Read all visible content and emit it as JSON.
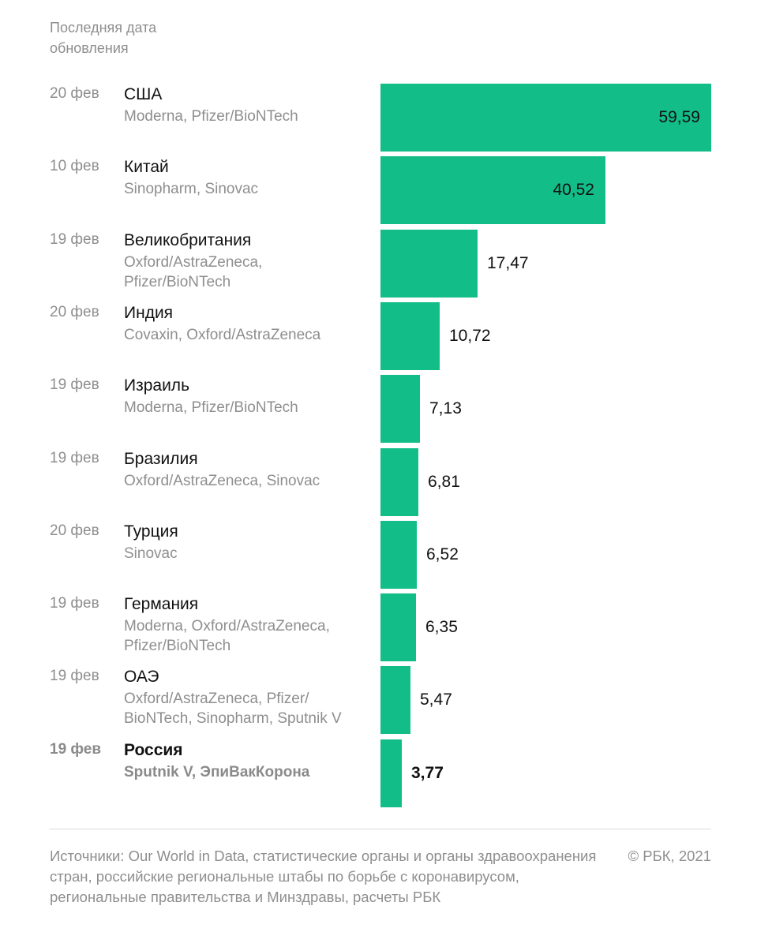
{
  "header": {
    "date_column_label": "Последняя дата обновления"
  },
  "chart_data": {
    "type": "bar",
    "orientation": "horizontal",
    "categories": [
      "США",
      "Китай",
      "Великобритания",
      "Индия",
      "Израиль",
      "Бразилия",
      "Турция",
      "Германия",
      "ОАЭ",
      "Россия"
    ],
    "values": [
      59.59,
      40.52,
      17.47,
      10.72,
      7.13,
      6.81,
      6.52,
      6.35,
      5.47,
      3.77
    ],
    "value_labels": [
      "59,59",
      "40,52",
      "17,47",
      "10,72",
      "7,13",
      "6,81",
      "6,52",
      "6,35",
      "5,47",
      "3,77"
    ],
    "dates": [
      "20 фев",
      "10 фев",
      "19 фев",
      "20 фев",
      "19 фев",
      "19 фев",
      "20 фев",
      "19 фев",
      "19 фев",
      "19 фев"
    ],
    "vaccines": [
      "Moderna, Pfizer/BioNTech",
      "Sinopharm, Sinovac",
      "Oxford/AstraZeneca, Pfizer/BioNTech",
      "Covaxin, Oxford/AstraZeneca",
      "Moderna, Pfizer/BioNTech",
      "Oxford/AstraZeneca, Sinovac",
      "Sinovac",
      "Moderna, Oxford/AstraZeneca, Pfizer/BioNTech",
      "Oxford/AstraZeneca, Pfizer/ BioNTech, Sinopharm, Sputnik V",
      "Sputnik V, ЭпиВакКорона"
    ],
    "highlight": "Россия",
    "xlim": [
      0,
      59.59
    ],
    "bar_color": "#13bd87"
  },
  "footer": {
    "sources": "Источники: Our World in Data, статистические органы и органы здравоохранения стран, российские региональные штабы по борьбе с коронавирусом, региональные правительства и Минздравы, расчеты РБК",
    "copyright": "© РБК, 2021"
  }
}
